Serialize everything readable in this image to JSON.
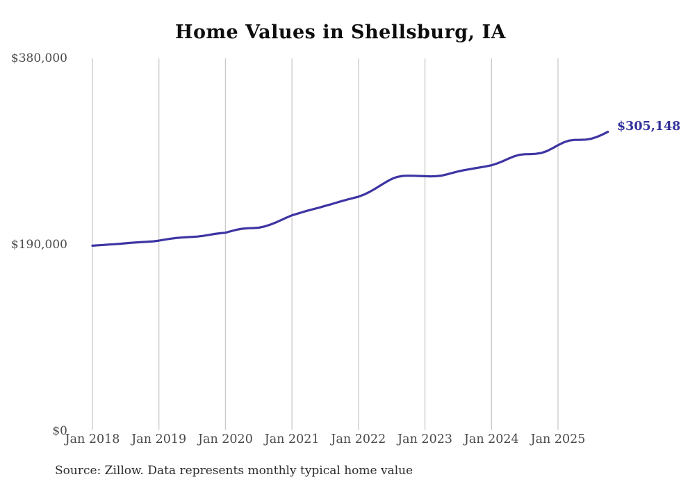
{
  "title": "Home Values in Shellsburg, IA",
  "source_note": "Source: Zillow. Data represents monthly typical home value",
  "end_label": "$305,148",
  "colors": {
    "line": "#3d35a3",
    "end_label": "#32309b",
    "grid": "#c9c9c9",
    "tick_text": "#4a4a4a",
    "title_text": "#0d0d0d",
    "source_text": "#2b2b2b",
    "background": "#ffffff"
  },
  "chart_data": {
    "type": "line",
    "title": "Home Values in Shellsburg, IA",
    "xlabel": "",
    "ylabel": "",
    "ylim": [
      0,
      380000
    ],
    "grid": "vertical-only",
    "legend": "none",
    "y_ticks": [
      {
        "label": "$0",
        "value": 0
      },
      {
        "label": "$190,000",
        "value": 190000
      },
      {
        "label": "$380,000",
        "value": 380000
      }
    ],
    "x_tick_labels": [
      "Jan 2018",
      "Jan 2019",
      "Jan 2020",
      "Jan 2021",
      "Jan 2022",
      "Jan 2023",
      "Jan 2024",
      "Jan 2025"
    ],
    "x_tick_month_indices": [
      0,
      12,
      24,
      36,
      48,
      60,
      72,
      84
    ],
    "x": [
      "2018-01",
      "2018-02",
      "2018-03",
      "2018-04",
      "2018-05",
      "2018-06",
      "2018-07",
      "2018-08",
      "2018-09",
      "2018-10",
      "2018-11",
      "2018-12",
      "2019-01",
      "2019-02",
      "2019-03",
      "2019-04",
      "2019-05",
      "2019-06",
      "2019-07",
      "2019-08",
      "2019-09",
      "2019-10",
      "2019-11",
      "2019-12",
      "2020-01",
      "2020-02",
      "2020-03",
      "2020-04",
      "2020-05",
      "2020-06",
      "2020-07",
      "2020-08",
      "2020-09",
      "2020-10",
      "2020-11",
      "2020-12",
      "2021-01",
      "2021-02",
      "2021-03",
      "2021-04",
      "2021-05",
      "2021-06",
      "2021-07",
      "2021-08",
      "2021-09",
      "2021-10",
      "2021-11",
      "2021-12",
      "2022-01",
      "2022-02",
      "2022-03",
      "2022-04",
      "2022-05",
      "2022-06",
      "2022-07",
      "2022-08",
      "2022-09",
      "2022-10",
      "2022-11",
      "2022-12",
      "2023-01",
      "2023-02",
      "2023-03",
      "2023-04",
      "2023-05",
      "2023-06",
      "2023-07",
      "2023-08",
      "2023-09",
      "2023-10",
      "2023-11",
      "2023-12",
      "2024-01",
      "2024-02",
      "2024-03",
      "2024-04",
      "2024-05",
      "2024-06",
      "2024-07",
      "2024-08",
      "2024-09",
      "2024-10",
      "2024-11",
      "2024-12",
      "2025-01",
      "2025-02",
      "2025-03",
      "2025-04",
      "2025-05",
      "2025-06",
      "2025-07",
      "2025-08",
      "2025-09",
      "2025-10"
    ],
    "series": [
      {
        "name": "Monthly typical home value",
        "color": "#3d35a3",
        "values": [
          189000,
          189400,
          189800,
          190200,
          190600,
          191000,
          191500,
          192000,
          192400,
          192800,
          193100,
          193500,
          194200,
          195200,
          196100,
          196800,
          197300,
          197700,
          198000,
          198400,
          199100,
          200000,
          201000,
          201700,
          202300,
          203800,
          205300,
          206300,
          206800,
          207000,
          207400,
          208600,
          210300,
          212500,
          215000,
          217600,
          220000,
          221700,
          223400,
          225000,
          226500,
          228000,
          229600,
          231200,
          232900,
          234500,
          236100,
          237600,
          239000,
          241100,
          243900,
          247100,
          250600,
          254000,
          257100,
          259200,
          260200,
          260400,
          260300,
          260100,
          259900,
          259700,
          259900,
          260500,
          261800,
          263300,
          264800,
          266000,
          267000,
          268000,
          268900,
          269900,
          271000,
          272900,
          275100,
          277600,
          280000,
          281700,
          282300,
          282400,
          282700,
          283600,
          285500,
          288300,
          291500,
          294300,
          296200,
          296900,
          297000,
          297200,
          298100,
          299900,
          302300,
          305148
        ]
      }
    ],
    "end_annotation": {
      "label": "$305,148",
      "value": 305148,
      "x": "2025-10"
    }
  }
}
